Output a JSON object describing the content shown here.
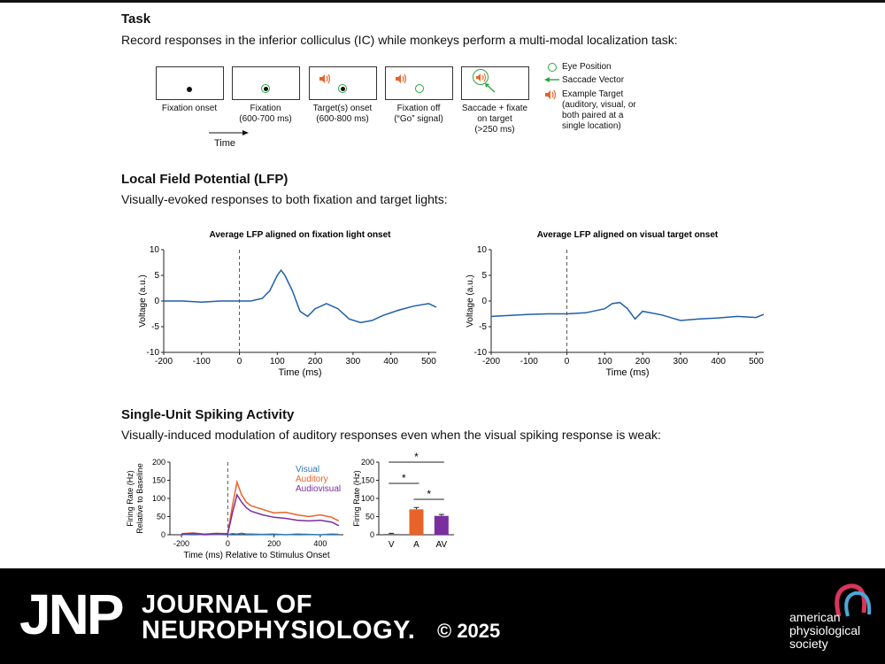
{
  "sections": {
    "task": {
      "title": "Task",
      "desc": "Record responses in the inferior colliculus (IC) while monkeys perform a multi-modal localization task:",
      "steps": [
        {
          "caption": "Fixation onset"
        },
        {
          "caption": "Fixation\n(600-700 ms)"
        },
        {
          "caption": "Target(s) onset\n(600-800 ms)"
        },
        {
          "caption": "Fixation off\n(“Go” signal)"
        },
        {
          "caption": "Saccade + fixate\non target\n(>250 ms)"
        }
      ],
      "time_label": "Time",
      "legend": {
        "eye": "Eye Position",
        "saccade": "Saccade Vector",
        "target": "Example Target\n(auditory, visual, or\nboth paired at a\nsingle location)"
      }
    },
    "lfp": {
      "title": "Local Field Potential (LFP)",
      "desc": "Visually-evoked responses to both fixation and target lights:"
    },
    "spiking": {
      "title": "Single-Unit Spiking Activity",
      "desc": "Visually-induced modulation of auditory responses even when the visual spiking response is weak:"
    }
  },
  "chart_data": [
    {
      "type": "line",
      "title": "Average LFP aligned on fixation light onset",
      "xlabel": "Time (ms)",
      "ylabel": "Voltage (a.u.)",
      "xlim": [
        -200,
        520
      ],
      "ylim": [
        -10,
        10
      ],
      "xticks": [
        -200,
        -100,
        0,
        100,
        200,
        300,
        400,
        500
      ],
      "yticks": [
        -10,
        -5,
        0,
        5,
        10
      ],
      "vline": 0,
      "color": "#1f5fa8",
      "x": [
        -200,
        -150,
        -100,
        -50,
        0,
        30,
        60,
        80,
        100,
        110,
        120,
        140,
        160,
        180,
        200,
        230,
        260,
        290,
        320,
        350,
        380,
        420,
        460,
        500,
        520
      ],
      "y": [
        0,
        0,
        -0.2,
        0,
        0,
        0,
        0.5,
        2,
        5,
        6,
        5,
        2,
        -2,
        -3,
        -1.5,
        -0.5,
        -1.5,
        -3.5,
        -4.2,
        -3.8,
        -2.8,
        -1.8,
        -1,
        -0.5,
        -1.2
      ]
    },
    {
      "type": "line",
      "title": "Average LFP aligned on visual target onset",
      "xlabel": "Time (ms)",
      "ylabel": "Voltage (a.u.)",
      "xlim": [
        -200,
        520
      ],
      "ylim": [
        -10,
        10
      ],
      "xticks": [
        -200,
        -100,
        0,
        100,
        200,
        300,
        400,
        500
      ],
      "yticks": [
        -10,
        -5,
        0,
        5,
        10
      ],
      "vline": 0,
      "color": "#1f5fa8",
      "x": [
        -200,
        -150,
        -100,
        -50,
        0,
        50,
        100,
        120,
        140,
        160,
        180,
        200,
        250,
        300,
        350,
        400,
        450,
        500,
        520
      ],
      "y": [
        -3,
        -2.8,
        -2.6,
        -2.5,
        -2.5,
        -2.3,
        -1.5,
        -0.5,
        -0.3,
        -1.5,
        -3.5,
        -2,
        -2.7,
        -3.8,
        -3.5,
        -3.3,
        -3,
        -3.2,
        -2.6
      ]
    },
    {
      "type": "line",
      "xlabel": "Time (ms) Relative to Stimulus Onset",
      "ylabel": "Firing Rate (Hz)\nRelative to Baseline",
      "xlim": [
        -250,
        500
      ],
      "ylim": [
        0,
        200
      ],
      "xticks": [
        -200,
        0,
        200,
        400
      ],
      "yticks": [
        0,
        50,
        100,
        150,
        200
      ],
      "vline": 0,
      "x": [
        -200,
        -150,
        -100,
        -50,
        0,
        20,
        40,
        60,
        80,
        100,
        150,
        200,
        250,
        300,
        350,
        400,
        450,
        480
      ],
      "series": [
        {
          "name": "Visual",
          "color": "#2a7ab8",
          "values": [
            0,
            2,
            0,
            1,
            0,
            3,
            2,
            4,
            2,
            2,
            1,
            2,
            0,
            2,
            1,
            0,
            2,
            1
          ]
        },
        {
          "name": "Auditory",
          "color": "#e8632a",
          "values": [
            3,
            5,
            2,
            4,
            3,
            80,
            145,
            110,
            90,
            80,
            70,
            60,
            62,
            55,
            50,
            55,
            48,
            38
          ]
        },
        {
          "name": "Audiovisual",
          "color": "#7a2ea0",
          "values": [
            2,
            4,
            1,
            3,
            2,
            60,
            110,
            90,
            75,
            65,
            55,
            48,
            45,
            40,
            38,
            40,
            35,
            25
          ]
        }
      ]
    },
    {
      "type": "bar",
      "ylabel": "Firing Rate (Hz)",
      "ylim": [
        0,
        200
      ],
      "yticks": [
        0,
        50,
        100,
        150,
        200
      ],
      "categories": [
        "V",
        "A",
        "AV"
      ],
      "values": [
        2,
        70,
        52
      ],
      "errors": [
        2,
        5,
        4
      ],
      "colors": [
        "#555555",
        "#e8632a",
        "#7a2ea0"
      ],
      "significance": [
        "*",
        "*",
        "*"
      ]
    }
  ],
  "footer": {
    "logo": "JNP",
    "journal_line1": "JOURNAL OF",
    "journal_line2": "NEUROPHYSIOLOGY.",
    "copyright": "© 2025",
    "publisher": "american\nphysiological\nsociety"
  }
}
